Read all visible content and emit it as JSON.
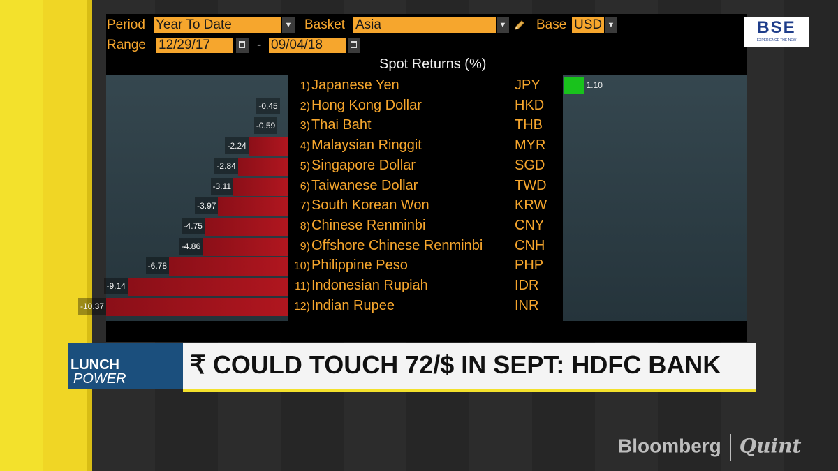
{
  "controls": {
    "period_label": "Period",
    "period_value": "Year To Date",
    "basket_label": "Basket",
    "basket_value": "Asia",
    "base_label": "Base",
    "base_value": "USD",
    "range_label": "Range",
    "range_start": "12/29/17",
    "range_sep": "-",
    "range_end": "09/04/18"
  },
  "logo_text": "BSE",
  "logo_tagline": "EXPERIENCE THE NEW",
  "chart_data": {
    "type": "bar",
    "title": "Spot Returns (%)",
    "categories": [
      "Japanese Yen",
      "Hong Kong Dollar",
      "Thai Baht",
      "Malaysian Ringgit",
      "Singapore Dollar",
      "Taiwanese Dollar",
      "South Korean Won",
      "Chinese Renminbi",
      "Offshore Chinese Renminbi",
      "Philippine Peso",
      "Indonesian Rupiah",
      "Indian Rupee"
    ],
    "ranks": [
      "1)",
      "2)",
      "3)",
      "4)",
      "5)",
      "6)",
      "7)",
      "8)",
      "9)",
      "10)",
      "11)",
      "12)"
    ],
    "codes": [
      "JPY",
      "HKD",
      "THB",
      "MYR",
      "SGD",
      "TWD",
      "KRW",
      "CNY",
      "CNH",
      "PHP",
      "IDR",
      "INR"
    ],
    "values": [
      1.1,
      -0.45,
      -0.59,
      -2.24,
      -2.84,
      -3.11,
      -3.97,
      -4.75,
      -4.86,
      -6.78,
      -9.14,
      -10.37
    ],
    "labels": [
      "1.10",
      "-0.45",
      "-0.59",
      "-2.24",
      "-2.84",
      "-3.11",
      "-3.97",
      "-4.75",
      "-4.86",
      "-6.78",
      "-9.14",
      "-10.37"
    ],
    "xlim": [
      -10.37,
      10.37
    ],
    "positive_color": "#19c21c",
    "negative_color": "#b0161f"
  },
  "banner": {
    "show_name_a": "POWER",
    "show_name_b": "LUNCH",
    "headline": "₹ COULD TOUCH 72/$ IN SEPT: HDFC BANK"
  },
  "brand": {
    "left": "Bloomberg",
    "right": "Quint"
  }
}
